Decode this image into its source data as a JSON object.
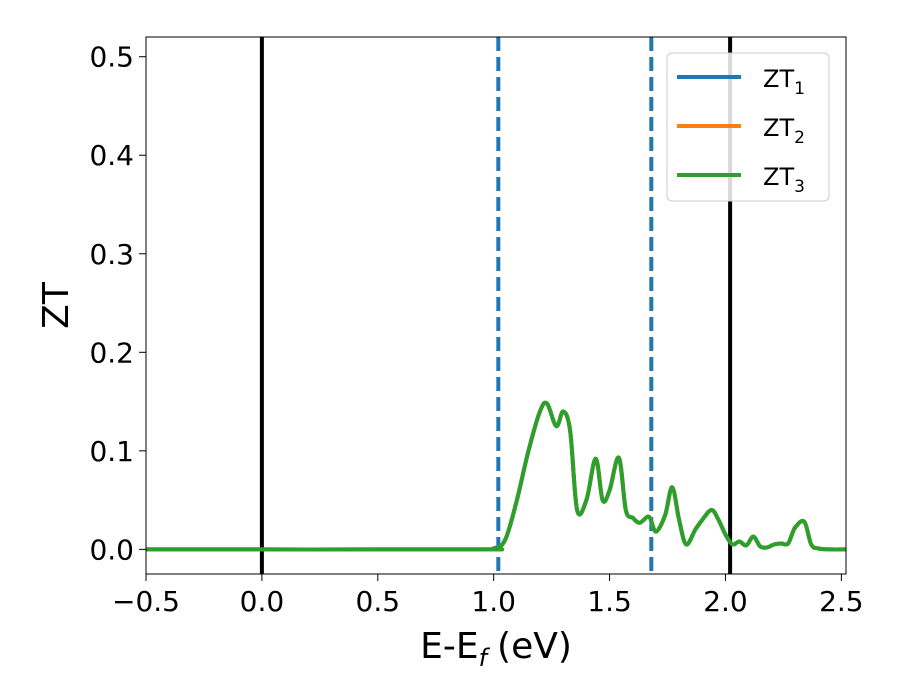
{
  "chart_data": {
    "type": "line",
    "xlabel": "E-E",
    "xlabel_subscript": "f",
    "xlabel_unit": "(eV)",
    "ylabel": "ZT",
    "xlim": [
      -0.5,
      2.52
    ],
    "ylim": [
      -0.025,
      0.52
    ],
    "x_ticks": [
      -0.5,
      0.0,
      0.5,
      1.0,
      1.5,
      2.0,
      2.5
    ],
    "x_tick_labels": [
      "−0.5",
      "0.0",
      "0.5",
      "1.0",
      "1.5",
      "2.0",
      "2.5"
    ],
    "y_ticks": [
      0.0,
      0.1,
      0.2,
      0.3,
      0.4,
      0.5
    ],
    "y_tick_labels": [
      "0.0",
      "0.1",
      "0.2",
      "0.3",
      "0.4",
      "0.5"
    ],
    "grid": false,
    "legend_position": "top-right",
    "vertical_lines": [
      {
        "x": 0.0,
        "style": "solid",
        "color": "#000000"
      },
      {
        "x": 2.02,
        "style": "solid",
        "color": "#000000"
      },
      {
        "x": 1.02,
        "style": "dashed",
        "color": "#1f77b4"
      },
      {
        "x": 1.68,
        "style": "dashed",
        "color": "#1f77b4"
      }
    ],
    "series": [
      {
        "name": "ZT",
        "subscript": "1",
        "color": "#1f77b4",
        "x": [
          -0.5,
          0.9,
          1.0,
          1.05,
          1.1,
          1.15,
          1.2,
          1.23,
          1.27,
          1.3,
          1.33,
          1.36,
          1.4,
          1.44,
          1.47,
          1.5,
          1.54,
          1.57,
          1.6,
          1.63,
          1.67,
          1.7,
          1.74,
          1.77,
          1.8,
          1.83,
          1.87,
          1.9,
          1.94,
          1.97,
          2.0,
          2.03,
          2.06,
          2.09,
          2.12,
          2.15,
          2.18,
          2.21,
          2.24,
          2.27,
          2.3,
          2.34,
          2.37,
          2.4,
          2.45,
          2.52
        ],
        "y": [
          0.0,
          0.0,
          0.001,
          0.01,
          0.05,
          0.1,
          0.14,
          0.148,
          0.125,
          0.14,
          0.12,
          0.04,
          0.05,
          0.092,
          0.05,
          0.06,
          0.093,
          0.04,
          0.032,
          0.027,
          0.033,
          0.018,
          0.035,
          0.063,
          0.03,
          0.005,
          0.02,
          0.03,
          0.04,
          0.03,
          0.015,
          0.005,
          0.008,
          0.004,
          0.013,
          0.003,
          0.002,
          0.005,
          0.006,
          0.006,
          0.022,
          0.028,
          0.005,
          0.001,
          0.0,
          0.0
        ]
      },
      {
        "name": "ZT",
        "subscript": "2",
        "color": "#ff7f0e",
        "x": [
          -0.5,
          0.9,
          1.0,
          1.05,
          1.1,
          1.15,
          1.2,
          1.23,
          1.27,
          1.3,
          1.33,
          1.36,
          1.4,
          1.44,
          1.47,
          1.5,
          1.54,
          1.57,
          1.6,
          1.63,
          1.67,
          1.7,
          1.74,
          1.77,
          1.8,
          1.83,
          1.87,
          1.9,
          1.94,
          1.97,
          2.0,
          2.03,
          2.06,
          2.09,
          2.12,
          2.15,
          2.18,
          2.21,
          2.24,
          2.27,
          2.3,
          2.34,
          2.37,
          2.4,
          2.45,
          2.52
        ],
        "y": [
          0.0,
          0.0,
          0.001,
          0.01,
          0.05,
          0.1,
          0.14,
          0.148,
          0.125,
          0.14,
          0.12,
          0.04,
          0.05,
          0.092,
          0.05,
          0.06,
          0.093,
          0.04,
          0.032,
          0.027,
          0.033,
          0.018,
          0.035,
          0.063,
          0.03,
          0.005,
          0.02,
          0.03,
          0.04,
          0.03,
          0.015,
          0.005,
          0.008,
          0.004,
          0.013,
          0.003,
          0.002,
          0.005,
          0.006,
          0.006,
          0.022,
          0.028,
          0.005,
          0.001,
          0.0,
          0.0
        ]
      },
      {
        "name": "ZT",
        "subscript": "3",
        "color": "#2ca02c",
        "x": [
          -0.5,
          0.9,
          1.0,
          1.05,
          1.1,
          1.15,
          1.2,
          1.23,
          1.27,
          1.3,
          1.33,
          1.36,
          1.4,
          1.44,
          1.47,
          1.5,
          1.54,
          1.57,
          1.6,
          1.63,
          1.67,
          1.7,
          1.74,
          1.77,
          1.8,
          1.83,
          1.87,
          1.9,
          1.94,
          1.97,
          2.0,
          2.03,
          2.06,
          2.09,
          2.12,
          2.15,
          2.18,
          2.21,
          2.24,
          2.27,
          2.3,
          2.34,
          2.37,
          2.4,
          2.45,
          2.52
        ],
        "y": [
          0.0,
          0.0,
          0.001,
          0.01,
          0.05,
          0.1,
          0.14,
          0.148,
          0.125,
          0.14,
          0.12,
          0.04,
          0.05,
          0.092,
          0.05,
          0.06,
          0.093,
          0.04,
          0.032,
          0.027,
          0.033,
          0.018,
          0.035,
          0.063,
          0.03,
          0.005,
          0.02,
          0.03,
          0.04,
          0.03,
          0.015,
          0.005,
          0.008,
          0.004,
          0.013,
          0.003,
          0.002,
          0.005,
          0.006,
          0.006,
          0.022,
          0.028,
          0.005,
          0.001,
          0.0,
          0.0
        ]
      }
    ]
  }
}
